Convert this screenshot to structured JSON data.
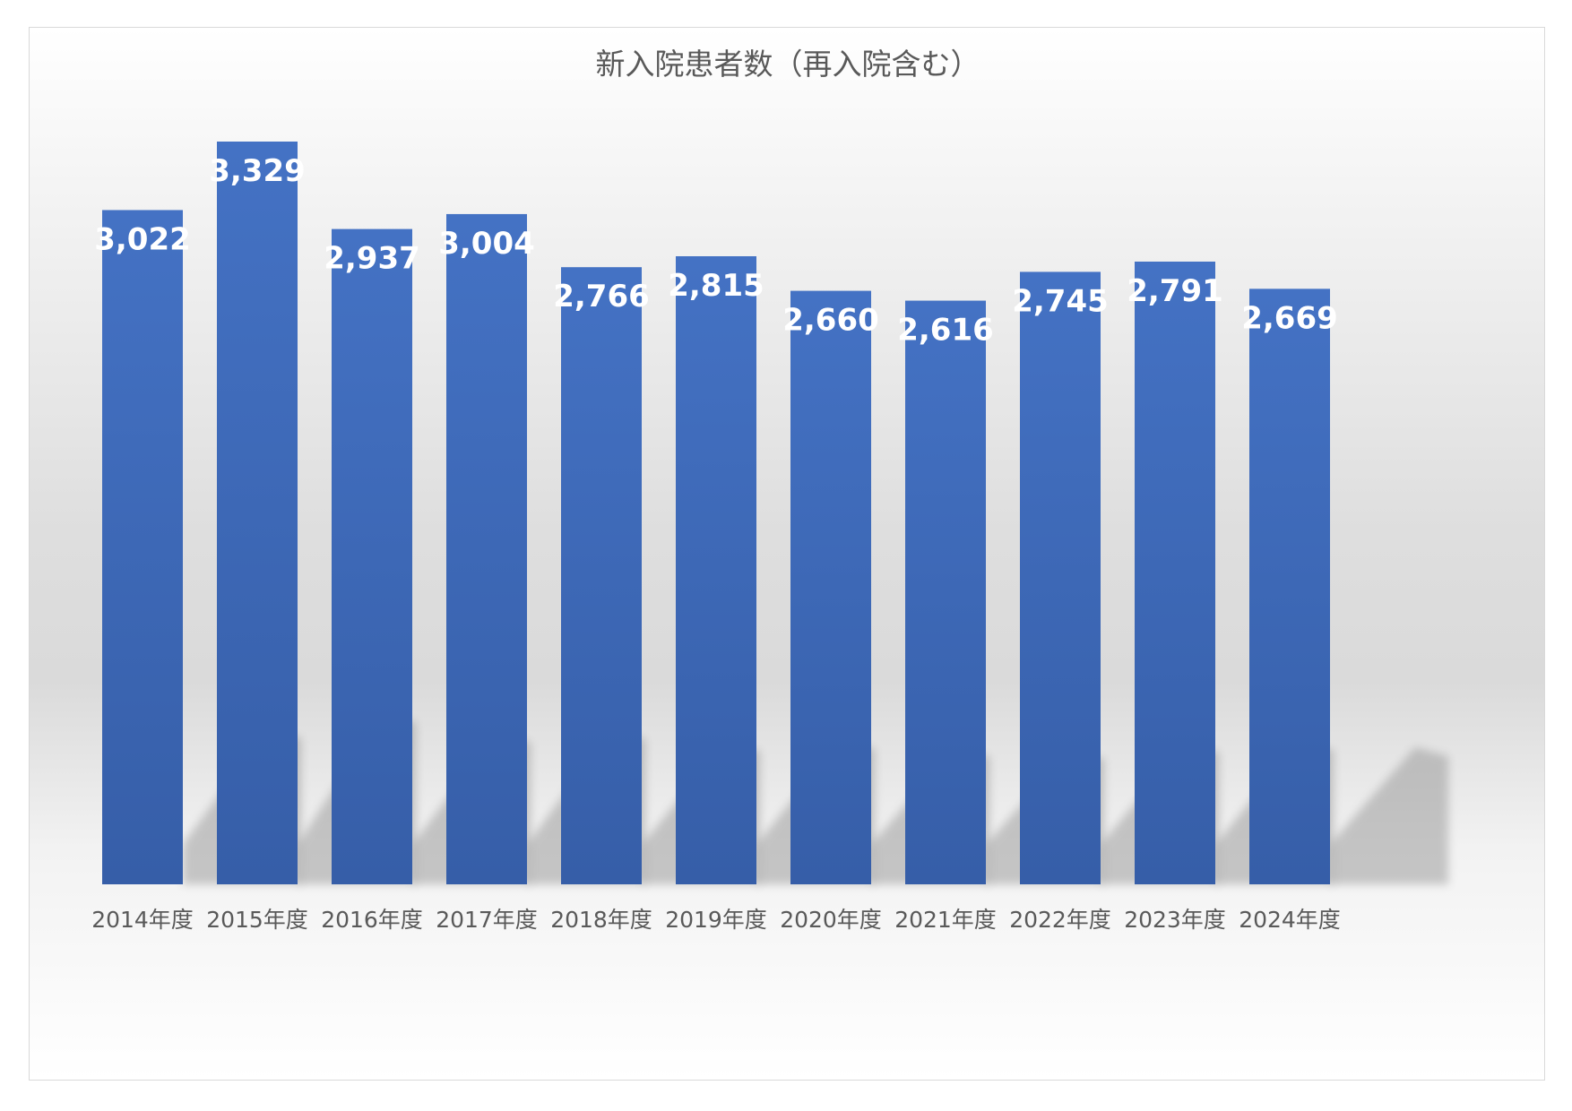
{
  "chart_data": {
    "type": "bar",
    "title": "新入院患者数（再入院含む）",
    "categories": [
      "2014年度",
      "2015年度",
      "2016年度",
      "2017年度",
      "2018年度",
      "2019年度",
      "2020年度",
      "2021年度",
      "2022年度",
      "2023年度",
      "2024年度"
    ],
    "values": [
      3022,
      3329,
      2937,
      3004,
      2766,
      2815,
      2660,
      2616,
      2745,
      2791,
      2669
    ],
    "value_labels": [
      "3,022",
      "3,329",
      "2,937",
      "3,004",
      "2,766",
      "2,815",
      "2,660",
      "2,616",
      "2,745",
      "2,791",
      "2,669"
    ],
    "ylim": [
      0,
      3329
    ],
    "grid": false,
    "legend": "none",
    "bar_color_top": "#4472c4",
    "bar_color_bottom": "#365ea8"
  }
}
